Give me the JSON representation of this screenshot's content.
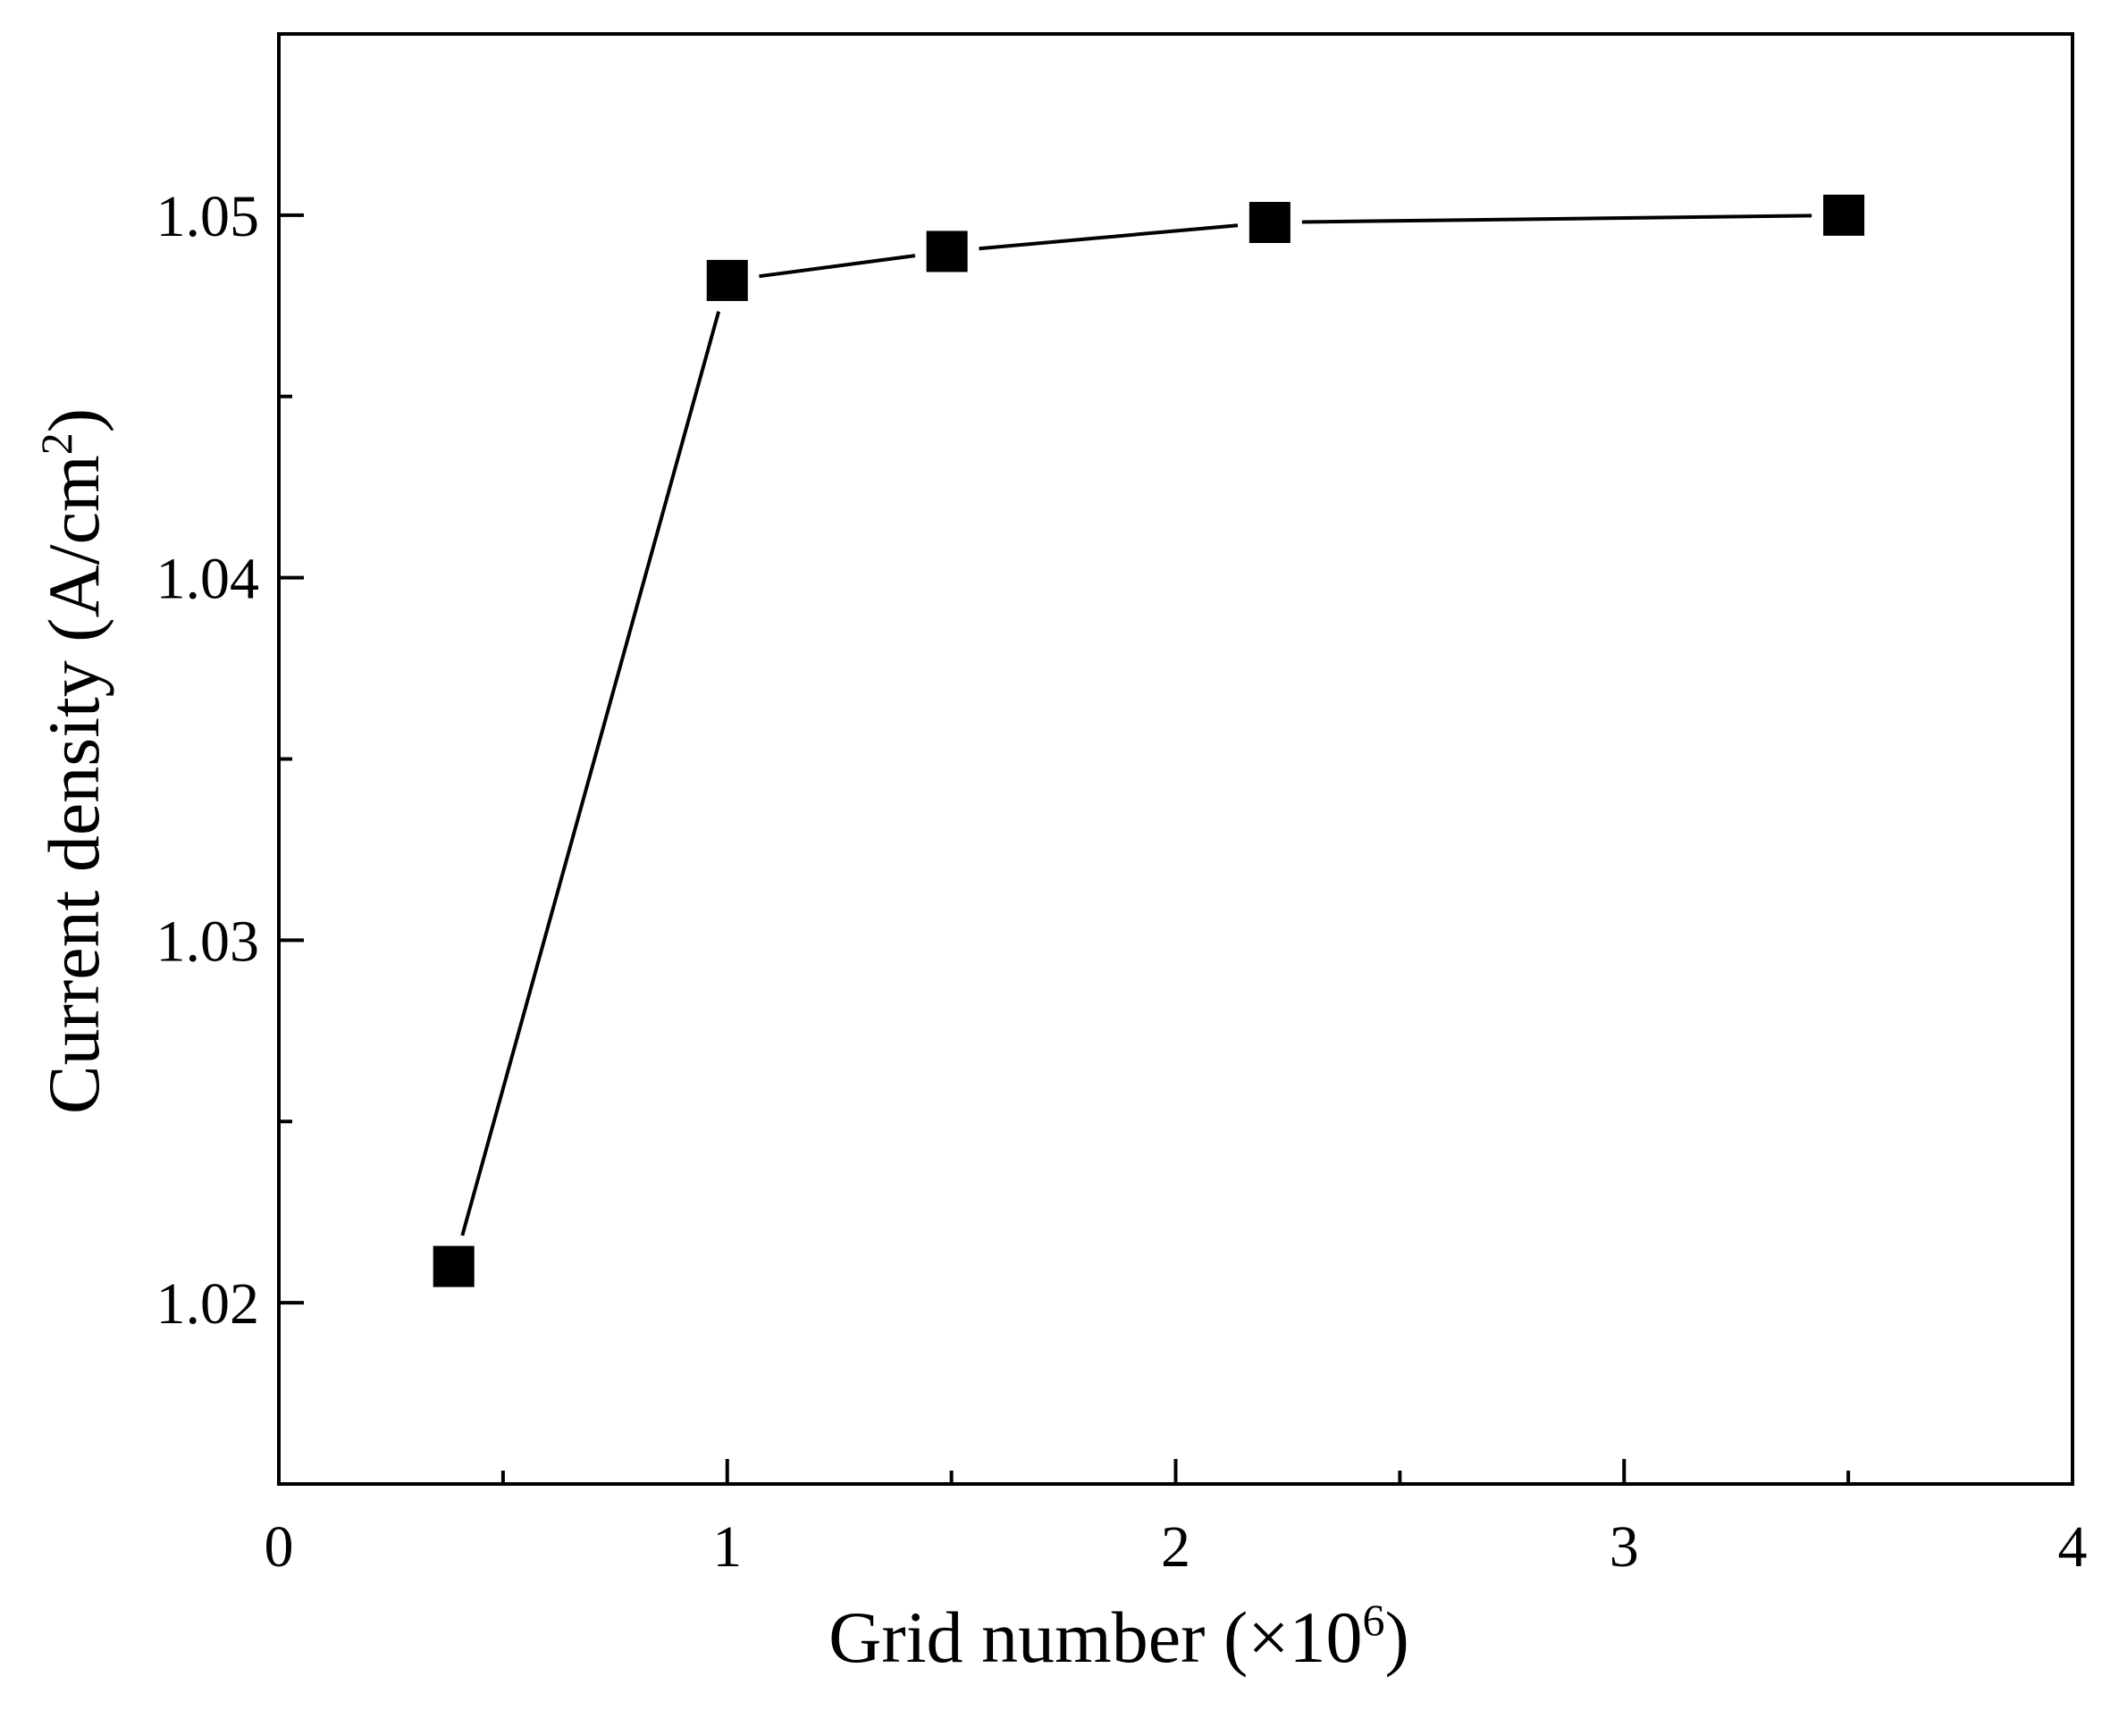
{
  "chart_data": {
    "type": "line",
    "title": "",
    "xlabel": "Grid number (×10",
    "xlabel_sup": "6",
    "xlabel_tail": ")",
    "ylabel": "Current density (A/cm",
    "ylabel_sup": "2",
    "ylabel_tail": ")",
    "xlim": [
      0,
      4
    ],
    "ylim": [
      1.015,
      1.055
    ],
    "x_major_ticks": [
      0,
      1,
      2,
      3,
      4
    ],
    "x_tick_labels": [
      "0",
      "1",
      "2",
      "3",
      "4"
    ],
    "x_minor_ticks": [
      0.5,
      1.5,
      2.5,
      3.5
    ],
    "y_major_ticks": [
      1.02,
      1.03,
      1.04,
      1.05
    ],
    "y_tick_labels": [
      "1.02",
      "1.03",
      "1.04",
      "1.05"
    ],
    "y_minor_ticks": [
      1.025,
      1.035,
      1.045
    ],
    "grid": false,
    "marker": "square",
    "line_color": "#000000",
    "marker_color": "#000000",
    "series": [
      {
        "x": [
          0.39,
          1.0,
          1.49,
          2.21,
          3.49
        ],
        "y": [
          1.021,
          1.0482,
          1.049,
          1.0498,
          1.05
        ]
      }
    ]
  }
}
